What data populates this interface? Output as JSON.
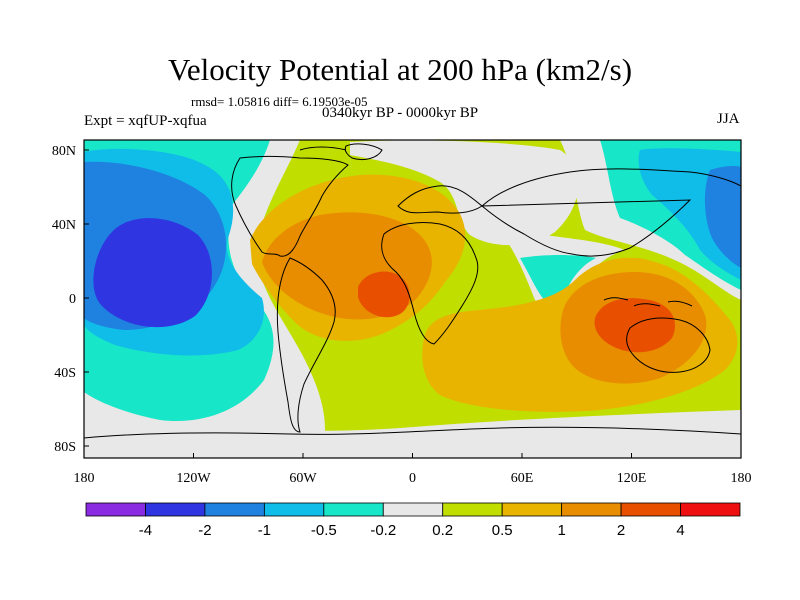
{
  "figure": {
    "title": "Velocity Potential at 200 hPa (km2/s)",
    "stats": "rmsd= 1.05816 diff= 6.19503e-05",
    "left_label": "Expt = xqfUP-xqfua",
    "center_label": "0340kyr BP - 0000kyr BP",
    "right_label": "JJA"
  },
  "axes": {
    "lon_ticks": [
      "180",
      "120W",
      "60W",
      "0",
      "60E",
      "120E",
      "180"
    ],
    "lat_ticks": [
      "80N",
      "40N",
      "0",
      "40S",
      "80S"
    ]
  },
  "colorbar": {
    "colors": [
      "#8a2be2",
      "#2f35e0",
      "#1f82e0",
      "#10bce8",
      "#18e6c8",
      "#e8e8e8",
      "#c0de00",
      "#e8b400",
      "#e88c00",
      "#e85000",
      "#ee1010"
    ],
    "labels": [
      "-4",
      "-2",
      "-1",
      "-0.5",
      "-0.2",
      "0.2",
      "0.5",
      "1",
      "2",
      "4"
    ]
  }
}
